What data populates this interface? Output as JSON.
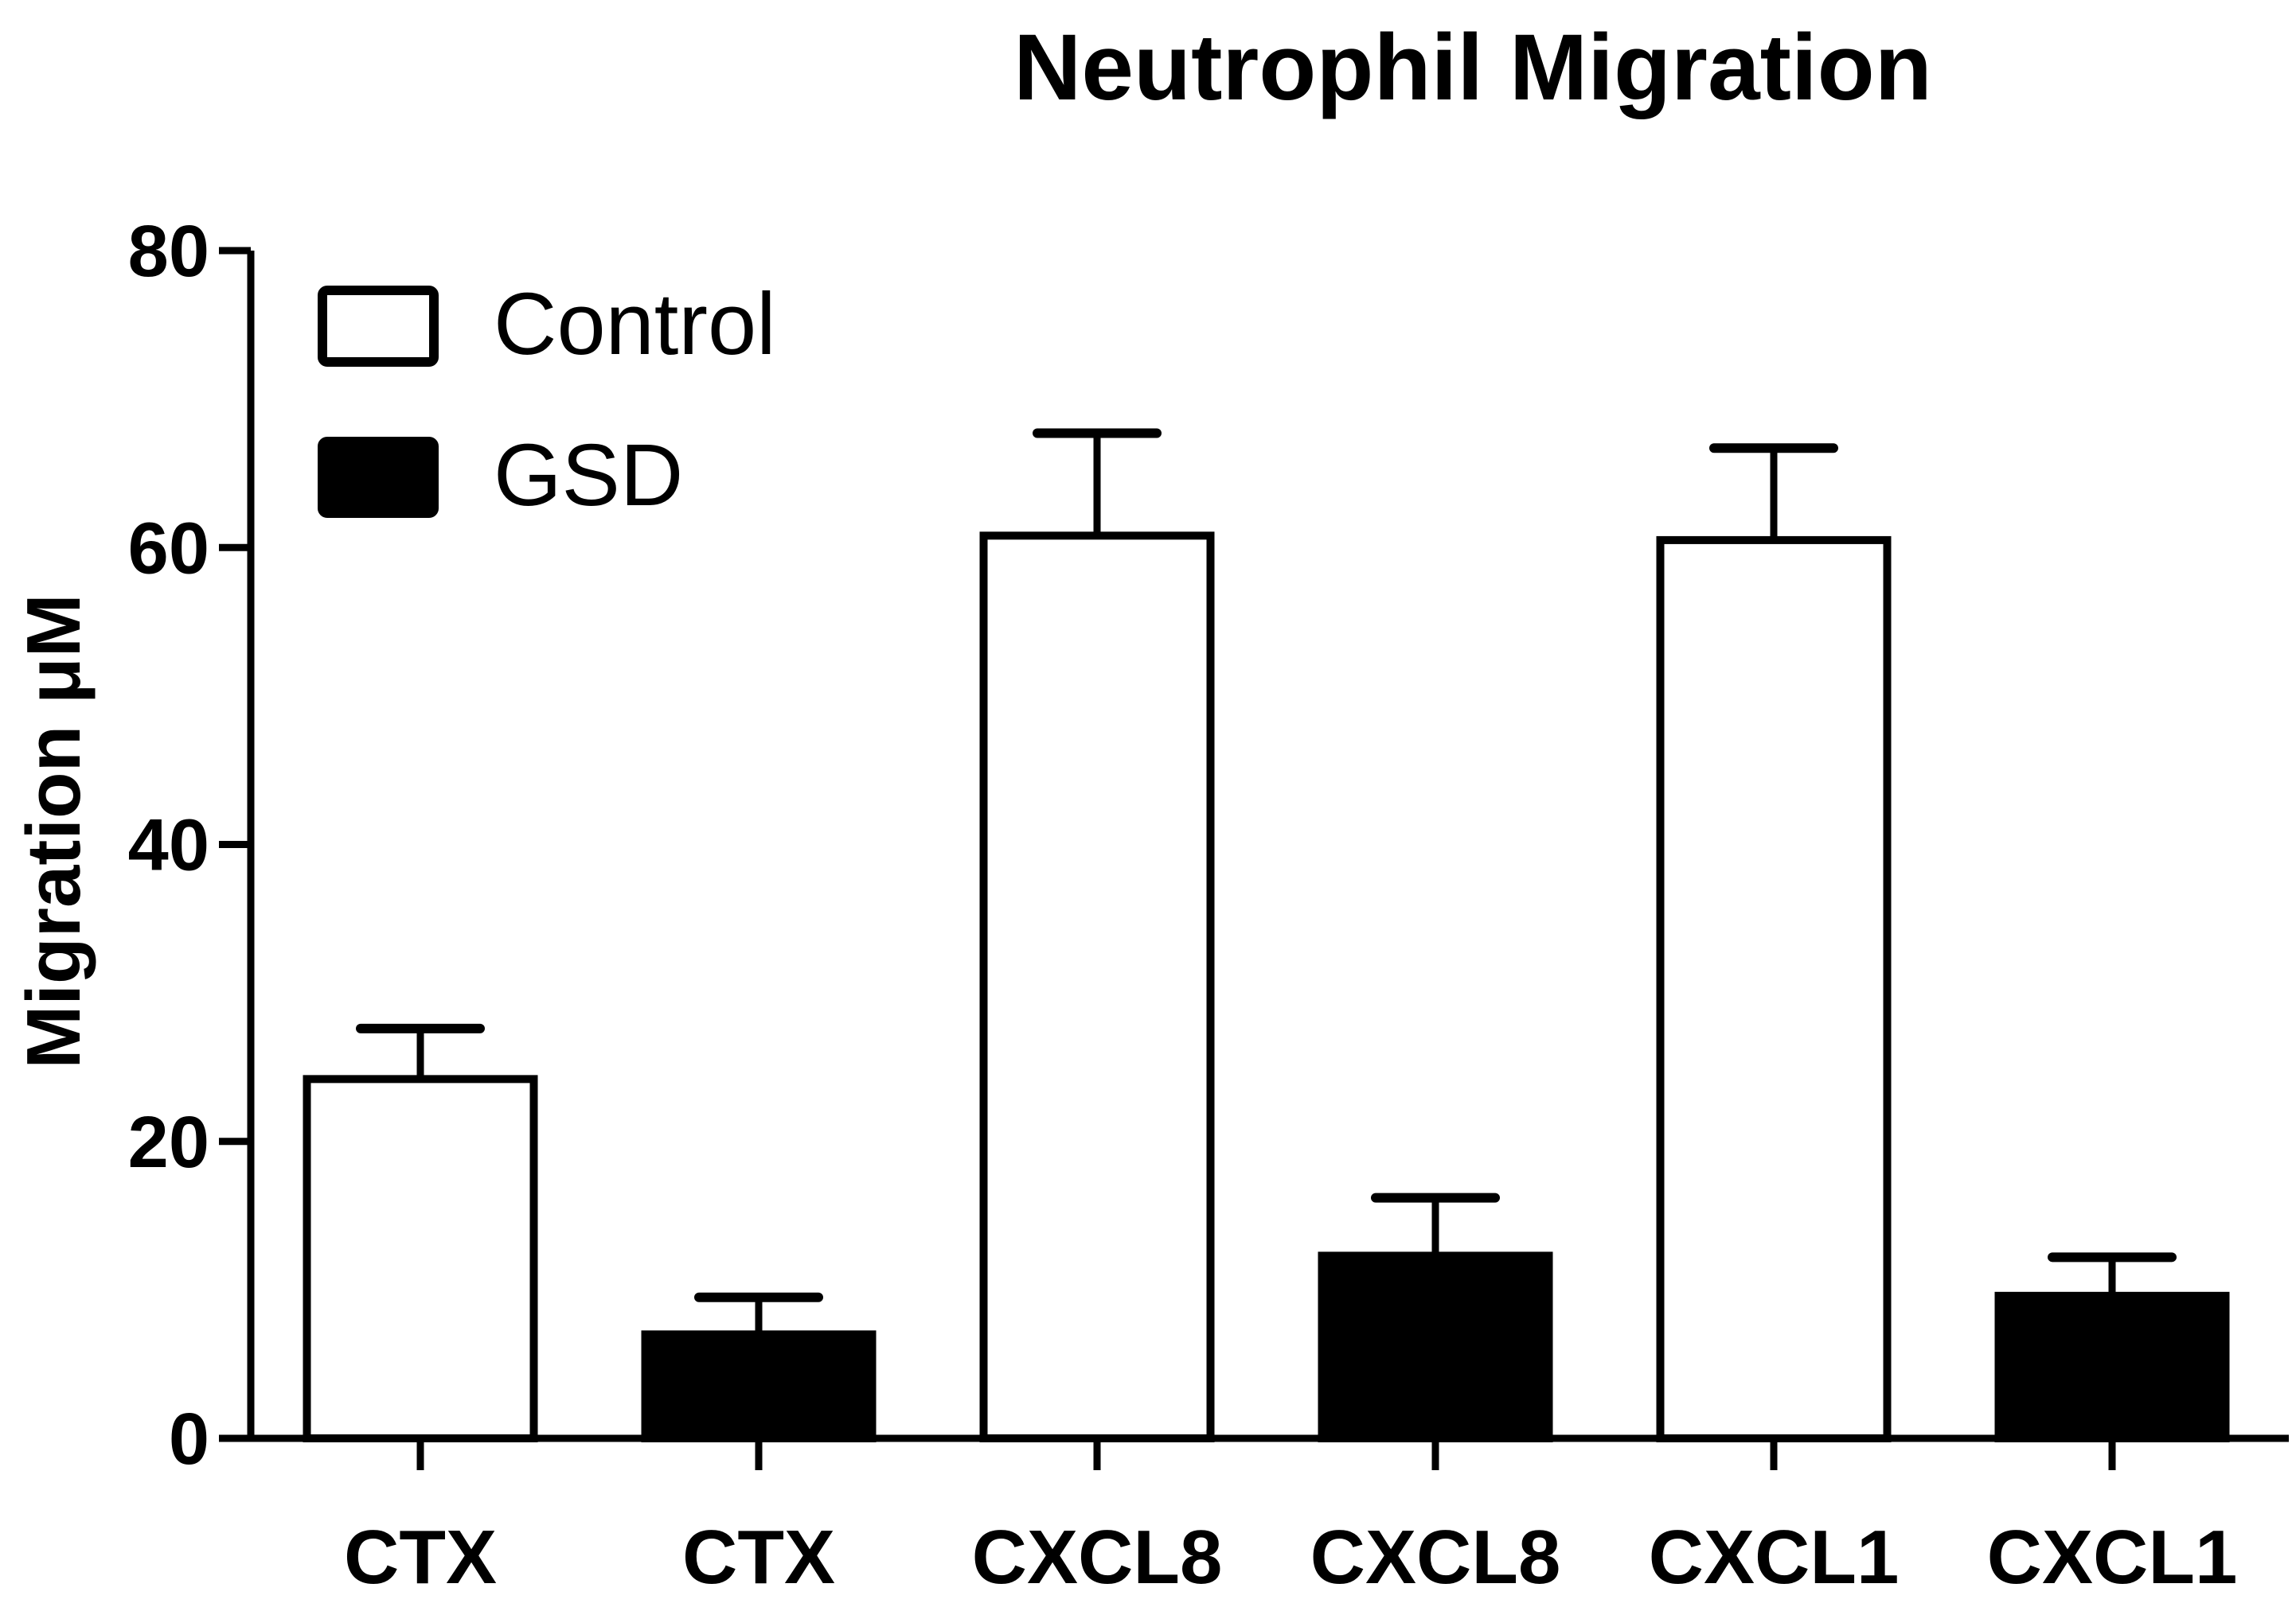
{
  "chart_data": {
    "type": "bar",
    "title": "Neutrophil Migration",
    "xlabel": "",
    "ylabel": "Migration μM",
    "ylim": [
      0,
      80
    ],
    "yticks": [
      0,
      20,
      40,
      60,
      80
    ],
    "grid": false,
    "legend_position": "top-left",
    "legend": [
      {
        "name": "Control",
        "fill": "#ffffff"
      },
      {
        "name": "GSD",
        "fill": "#000000"
      }
    ],
    "categories": [
      "CTX",
      "CTX",
      "CXCL8",
      "CXCL8",
      "CXCL1",
      "CXCL1"
    ],
    "values": [
      24.2,
      7.0,
      60.8,
      12.3,
      60.5,
      9.6
    ],
    "errors": [
      3.4,
      2.5,
      6.9,
      3.9,
      6.2,
      2.6
    ],
    "series_of_bar": [
      "Control",
      "GSD",
      "Control",
      "GSD",
      "Control",
      "GSD"
    ],
    "colors": {
      "axis": "#000000",
      "control_fill": "#ffffff",
      "gsd_fill": "#000000"
    }
  }
}
